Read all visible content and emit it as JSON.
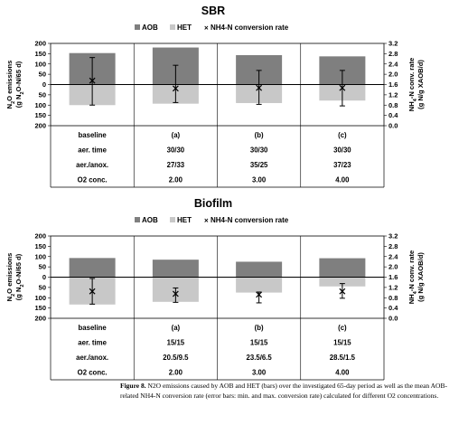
{
  "chart_data": [
    {
      "type": "bar",
      "title": "SBR",
      "legend": [
        "AOB",
        "HET",
        "NH4-N conversion rate"
      ],
      "legend_placement": "top",
      "categories": [
        "baseline",
        "(a)",
        "(b)",
        "(c)"
      ],
      "series": [
        {
          "name": "AOB",
          "values": [
            153,
            180,
            143,
            137
          ]
        },
        {
          "name": "HET",
          "values": [
            -100,
            -93,
            -90,
            -78
          ]
        },
        {
          "name": "NH4-N conversion rate",
          "values": [
            1.75,
            1.45,
            1.47,
            1.47
          ],
          "err_min": [
            0.8,
            0.9,
            0.83,
            0.77
          ],
          "err_max": [
            2.65,
            2.35,
            2.15,
            2.15
          ]
        }
      ],
      "y_left_ticks": [
        "200",
        "150",
        "100",
        "50",
        "0",
        "50",
        "100",
        "150",
        "200"
      ],
      "y_right_ticks": [
        "3.2",
        "2.8",
        "2.4",
        "2.0",
        "1.6",
        "1.2",
        "0.8",
        "0.4",
        "0.0"
      ],
      "ylim_left": [
        -200,
        200
      ],
      "ylim_right": [
        0,
        3.2
      ],
      "ylabel_left": "N2O emissions (g N2O-N/65 d)",
      "ylabel_right": "NH4-N conv. rate (g N/g XAOB/d)",
      "table": {
        "rows": [
          {
            "label": "baseline",
            "values": [
              "(a)",
              "(b)",
              "(c)"
            ]
          },
          {
            "label": "aer. time",
            "values": [
              "30/30",
              "30/30",
              "30/30"
            ]
          },
          {
            "label": "aer./anox.",
            "values": [
              "27/33",
              "35/25",
              "37/23"
            ]
          },
          {
            "label": "O2 conc.",
            "values": [
              "2.00",
              "3.00",
              "4.00"
            ]
          }
        ]
      }
    },
    {
      "type": "bar",
      "title": "Biofilm",
      "legend": [
        "AOB",
        "HET",
        "NH4-N conversion rate"
      ],
      "legend_placement": "top",
      "categories": [
        "baseline",
        "(a)",
        "(b)",
        "(c)"
      ],
      "series": [
        {
          "name": "AOB",
          "values": [
            93,
            85,
            75,
            92
          ]
        },
        {
          "name": "HET",
          "values": [
            -133,
            -120,
            -75,
            -45
          ]
        },
        {
          "name": "NH4-N conversion rate",
          "values": [
            1.05,
            0.95,
            0.92,
            1.05
          ],
          "err_min": [
            0.55,
            0.62,
            0.6,
            0.78
          ],
          "err_max": [
            1.55,
            1.18,
            1.02,
            1.35
          ]
        }
      ],
      "y_left_ticks": [
        "200",
        "150",
        "100",
        "50",
        "0",
        "50",
        "100",
        "150",
        "200"
      ],
      "y_right_ticks": [
        "3.2",
        "2.8",
        "2.4",
        "2.0",
        "1.6",
        "1.2",
        "0.8",
        "0.4",
        "0.0"
      ],
      "ylim_left": [
        -200,
        200
      ],
      "ylim_right": [
        0,
        3.2
      ],
      "ylabel_left": "N2O emissions (g N2O-N/65 d)",
      "ylabel_right": "NH4-N conv. rate (g N/g XAOB/d)",
      "table": {
        "rows": [
          {
            "label": "baseline",
            "values": [
              "(a)",
              "(b)",
              "(c)"
            ]
          },
          {
            "label": "aer. time",
            "values": [
              "15/15",
              "15/15",
              "15/15"
            ]
          },
          {
            "label": "aer./anox.",
            "values": [
              "20.5/9.5",
              "23.5/6.5",
              "28.5/1.5"
            ]
          },
          {
            "label": "O2 conc.",
            "values": [
              "2.00",
              "3.00",
              "4.00"
            ]
          }
        ]
      }
    }
  ],
  "colors": {
    "aob": "#7f7f7f",
    "het": "#c8c8c8",
    "line": "#000000"
  },
  "caption": {
    "label": "Figure 8.",
    "text": "N2O emissions caused by AOB and HET (bars) over the investigated 65-day period as well as the mean AOB-related NH4-N conversion rate (error bars: min. and max. conversion rate) calculated for different O2 concentrations."
  }
}
